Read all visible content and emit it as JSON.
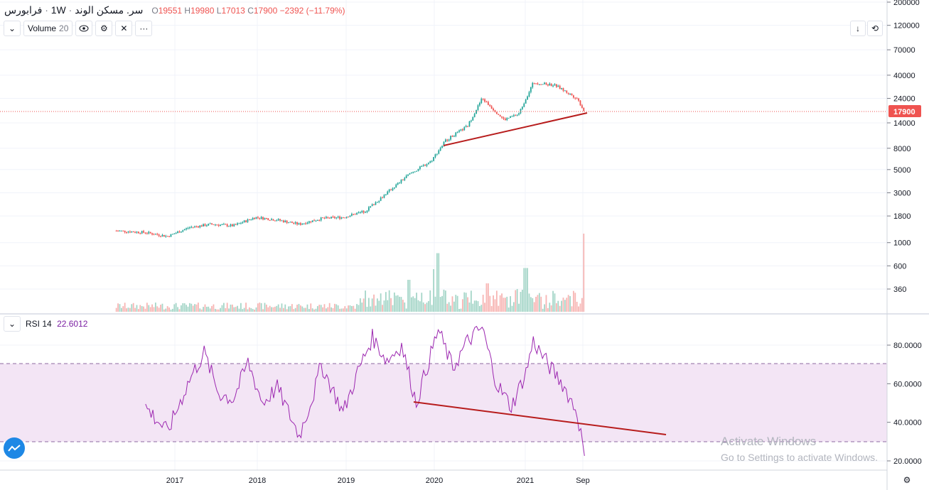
{
  "header": {
    "symbol": "فرابورس",
    "interval": "1W",
    "name": "سر. مسکن الوند",
    "ohlc": {
      "o_label": "O",
      "o": "19551",
      "h_label": "H",
      "h": "19980",
      "l_label": "L",
      "l": "17013",
      "c_label": "C",
      "c": "17900",
      "change": "−2392 (−11.79%)"
    }
  },
  "volume_legend": {
    "label": "Volume",
    "value": "20"
  },
  "rsi_legend": {
    "label": "RSI",
    "period": "14",
    "value": "22.6012"
  },
  "price_axis": {
    "ticks": [
      "200000",
      "120000",
      "70000",
      "40000",
      "24000",
      "14000",
      "8000",
      "5000",
      "3000",
      "1800",
      "1000",
      "600",
      "360"
    ],
    "last_price": "17900"
  },
  "rsi_axis": {
    "ticks": [
      "80.0000",
      "60.0000",
      "40.0000",
      "20.0000"
    ]
  },
  "time_axis": {
    "ticks": [
      "2017",
      "2018",
      "2019",
      "2020",
      "2021",
      "Sep"
    ]
  },
  "watermark": {
    "line1": "Activate Windows",
    "line2": "Go to Settings to activate Windows."
  },
  "colors": {
    "up": "#26a69a",
    "down": "#ef5350",
    "rsi_line": "#9c27b0",
    "trendline": "#b71c1c",
    "rsi_band": "#f3e5f5"
  },
  "icons": [
    "collapse-chevron-icon",
    "eye-icon",
    "gear-icon",
    "close-icon",
    "more-icon",
    "arrow-down-icon",
    "fit-icon",
    "settings-icon",
    "logo-icon"
  ],
  "chart_data": [
    {
      "type": "candlestick",
      "scale": "log",
      "x_range": [
        "2016-05",
        "2021-09"
      ],
      "y_range": [
        200,
        200000
      ],
      "last_close": 17900,
      "close_approx": [
        {
          "x": "2016-05",
          "y": 1300
        },
        {
          "x": "2016-09",
          "y": 1250
        },
        {
          "x": "2016-12",
          "y": 1150
        },
        {
          "x": "2017-03",
          "y": 1400
        },
        {
          "x": "2017-06",
          "y": 1500
        },
        {
          "x": "2017-09",
          "y": 1450
        },
        {
          "x": "2017-12",
          "y": 1750
        },
        {
          "x": "2018-03",
          "y": 1650
        },
        {
          "x": "2018-06",
          "y": 1500
        },
        {
          "x": "2018-09",
          "y": 1700
        },
        {
          "x": "2018-12",
          "y": 1750
        },
        {
          "x": "2019-03",
          "y": 2000
        },
        {
          "x": "2019-06",
          "y": 3000
        },
        {
          "x": "2019-09",
          "y": 4500
        },
        {
          "x": "2019-12",
          "y": 6000
        },
        {
          "x": "2020-02",
          "y": 9500
        },
        {
          "x": "2020-05",
          "y": 13000
        },
        {
          "x": "2020-07",
          "y": 24000
        },
        {
          "x": "2020-10",
          "y": 15000
        },
        {
          "x": "2020-12",
          "y": 17000
        },
        {
          "x": "2021-02",
          "y": 34000
        },
        {
          "x": "2021-05",
          "y": 32000
        },
        {
          "x": "2021-08",
          "y": 24000
        },
        {
          "x": "2021-09",
          "y": 17900
        }
      ],
      "trendline": [
        {
          "x": "2020-01",
          "y": 9000
        },
        {
          "x": "2021-09",
          "y": 17900
        }
      ]
    },
    {
      "type": "bar",
      "title": "Volume 20",
      "spikes": [
        {
          "x": "2020-01",
          "rel": 0.75
        },
        {
          "x": "2021-01",
          "rel": 0.56
        },
        {
          "x": "2021-09",
          "rel": 1.0
        }
      ]
    },
    {
      "type": "line",
      "title": "RSI 14",
      "y_range": [
        15,
        95
      ],
      "band": [
        30,
        70
      ],
      "last_value": 22.6012,
      "points": [
        {
          "x": "2016-09",
          "y": 48
        },
        {
          "x": "2016-12",
          "y": 35
        },
        {
          "x": "2017-03",
          "y": 62
        },
        {
          "x": "2017-05",
          "y": 76
        },
        {
          "x": "2017-07",
          "y": 55
        },
        {
          "x": "2017-09",
          "y": 52
        },
        {
          "x": "2017-11",
          "y": 71
        },
        {
          "x": "2018-01",
          "y": 50
        },
        {
          "x": "2018-03",
          "y": 58
        },
        {
          "x": "2018-06",
          "y": 33
        },
        {
          "x": "2018-08",
          "y": 55
        },
        {
          "x": "2018-09",
          "y": 70
        },
        {
          "x": "2018-12",
          "y": 45
        },
        {
          "x": "2019-02",
          "y": 66
        },
        {
          "x": "2019-04",
          "y": 84
        },
        {
          "x": "2019-06",
          "y": 72
        },
        {
          "x": "2019-08",
          "y": 80
        },
        {
          "x": "2019-10",
          "y": 50
        },
        {
          "x": "2020-01",
          "y": 88
        },
        {
          "x": "2020-03",
          "y": 68
        },
        {
          "x": "2020-05",
          "y": 82
        },
        {
          "x": "2020-07",
          "y": 89
        },
        {
          "x": "2020-09",
          "y": 60
        },
        {
          "x": "2020-11",
          "y": 48
        },
        {
          "x": "2021-01",
          "y": 66
        },
        {
          "x": "2021-02",
          "y": 82
        },
        {
          "x": "2021-04",
          "y": 70
        },
        {
          "x": "2021-06",
          "y": 60
        },
        {
          "x": "2021-08",
          "y": 45
        },
        {
          "x": "2021-09",
          "y": 22.6
        }
      ],
      "trendline": [
        {
          "x": "2019-10",
          "y": 51
        },
        {
          "x": "2022-05",
          "y": 34
        }
      ]
    }
  ]
}
